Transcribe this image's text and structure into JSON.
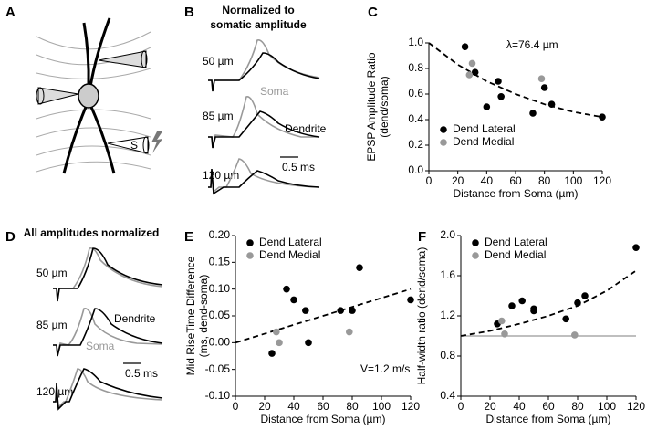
{
  "panel_labels": [
    "A",
    "B",
    "C",
    "D",
    "E",
    "F"
  ],
  "panel_a": {
    "stim_label": "S"
  },
  "panel_b": {
    "title": [
      "Normalized to",
      "somatic amplitude"
    ],
    "trace_labels": [
      "50 µm",
      "85 µm",
      "120 µm"
    ],
    "soma_label": "Soma",
    "dendrite_label": "Dendrite",
    "scale_label": "0.5 ms"
  },
  "panel_d": {
    "title": "All amplitudes normalized",
    "trace_labels": [
      "50 µm",
      "85 µm",
      "120 µm"
    ],
    "soma_label": "Soma",
    "dendrite_label": "Dendrite",
    "scale_label": "0.5 ms"
  },
  "chart_data": [
    {
      "type": "scatter",
      "xlabel": "Distance from Soma (µm)",
      "ylabel": [
        "EPSP Amplitude Ratio",
        "(dend/soma)"
      ],
      "annotation": "λ=76.4 µm",
      "legend": "lower left",
      "xlim": [
        0,
        120
      ],
      "xticks": [
        0,
        20,
        40,
        60,
        80,
        100,
        120
      ],
      "ylim": [
        0,
        1
      ],
      "yticks": [
        {
          "value": 0,
          "label": "0.0"
        },
        0.2,
        0.4,
        0.6,
        0.8,
        {
          "value": 1,
          "label": "1.0"
        }
      ],
      "series": [
        {
          "name": "Dend Lateral",
          "color": "#000000",
          "x": [
            25,
            32,
            40,
            48,
            50,
            72,
            80,
            85,
            120
          ],
          "values": [
            0.97,
            0.77,
            0.5,
            0.7,
            0.58,
            0.45,
            0.65,
            0.52,
            0.42
          ]
        },
        {
          "name": "Dend Medial",
          "color": "#999999",
          "x": [
            28,
            30,
            78
          ],
          "values": [
            0.75,
            0.84,
            0.72
          ]
        }
      ],
      "fit": {
        "x": [
          0,
          20,
          40,
          60,
          80,
          100,
          120
        ],
        "values": [
          1.0,
          0.83,
          0.7,
          0.6,
          0.52,
          0.46,
          0.42
        ]
      }
    },
    {
      "type": "scatter",
      "xlabel": "Distance from Soma (µm)",
      "ylabel": [
        "Mid RiseTime Difference",
        "(ms, dend-soma)"
      ],
      "annotation": "V=1.2 m/s",
      "legend": "upper left",
      "xlim": [
        0,
        120
      ],
      "xticks": [
        0,
        20,
        40,
        60,
        80,
        100,
        120
      ],
      "ylim": [
        -0.1,
        0.2
      ],
      "yticks": [
        {
          "value": -0.1,
          "label": "-0.10"
        },
        -0.05,
        {
          "value": 0,
          "label": "0.00"
        },
        0.05,
        {
          "value": 0.1,
          "label": "0.10"
        },
        0.15,
        {
          "value": 0.2,
          "label": "0.20"
        }
      ],
      "series": [
        {
          "name": "Dend Lateral",
          "color": "#000000",
          "x": [
            25,
            35,
            40,
            48,
            50,
            72,
            80,
            85,
            120
          ],
          "values": [
            -0.02,
            0.1,
            0.08,
            0.06,
            0.0,
            0.06,
            0.06,
            0.14,
            0.08
          ]
        },
        {
          "name": "Dend Medial",
          "color": "#999999",
          "x": [
            28,
            30,
            78
          ],
          "values": [
            0.02,
            0.0,
            0.02
          ]
        }
      ],
      "fit": {
        "x": [
          0,
          120
        ],
        "values": [
          0.0,
          0.1
        ]
      }
    },
    {
      "type": "scatter",
      "xlabel": "Distance from Soma (µm)",
      "ylabel": [
        "Half-width ratio (dend/soma)"
      ],
      "legend": "upper left",
      "xlim": [
        0,
        120
      ],
      "xticks": [
        0,
        20,
        40,
        60,
        80,
        100,
        120
      ],
      "ylim": [
        0.4,
        2
      ],
      "yticks": [
        0.4,
        0.8,
        1.2,
        1.6,
        {
          "value": 2,
          "label": "2.0"
        }
      ],
      "series": [
        {
          "name": "Dend Lateral",
          "color": "#000000",
          "x": [
            25,
            35,
            42,
            50,
            50,
            72,
            80,
            85,
            120
          ],
          "values": [
            1.12,
            1.3,
            1.35,
            1.25,
            1.27,
            1.17,
            1.33,
            1.4,
            1.88
          ]
        },
        {
          "name": "Dend Medial",
          "color": "#999999",
          "x": [
            28,
            30,
            78
          ],
          "values": [
            1.15,
            1.02,
            1.01
          ]
        }
      ],
      "fit": {
        "x": [
          0,
          20,
          40,
          60,
          80,
          100,
          120
        ],
        "values": [
          1.0,
          1.05,
          1.12,
          1.2,
          1.3,
          1.45,
          1.65
        ]
      },
      "reference_line": {
        "y": 1,
        "color": "#999999"
      }
    }
  ]
}
